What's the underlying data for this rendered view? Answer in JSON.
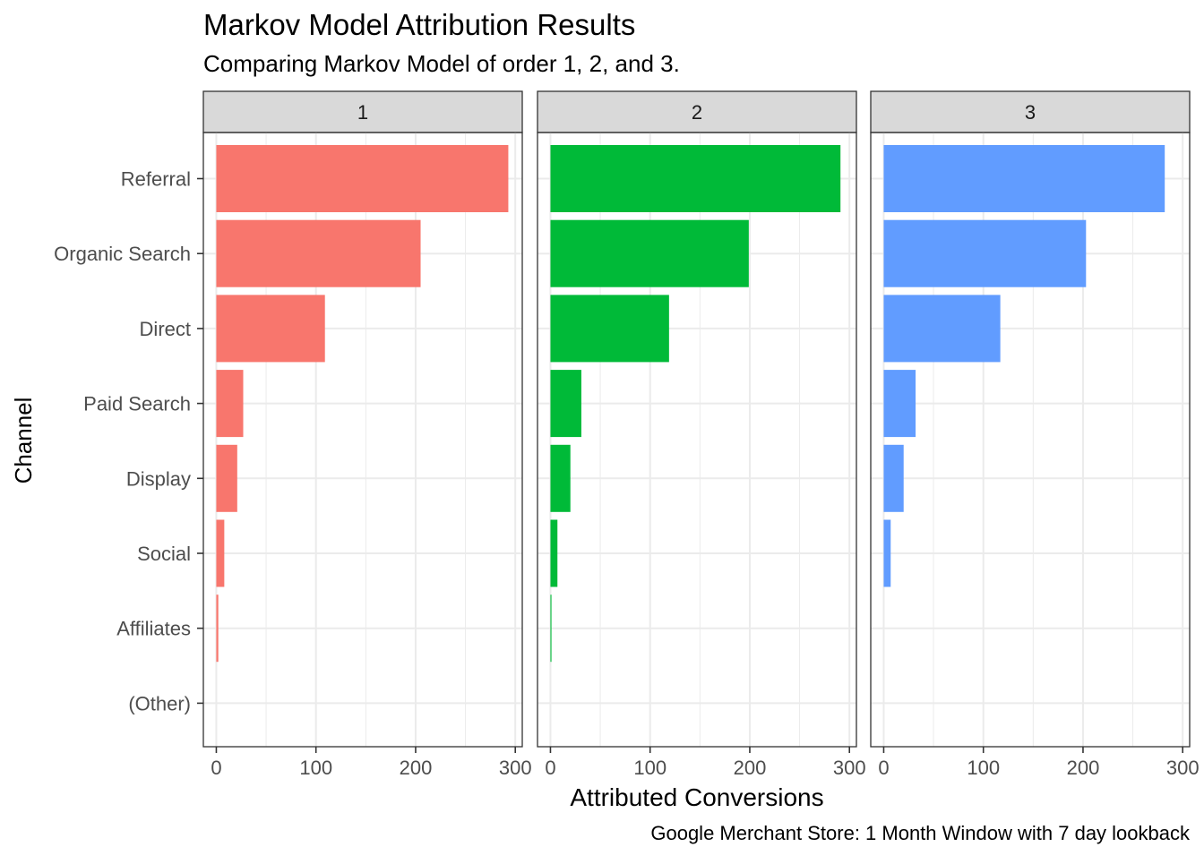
{
  "chart_data": {
    "type": "bar",
    "orientation": "horizontal",
    "title": "Markov Model Attribution Results",
    "subtitle": "Comparing Markov Model of order 1, 2, and 3.",
    "xlabel": "Attributed Conversions",
    "ylabel": "Channel",
    "caption": "Google Merchant Store: 1 Month Window with 7 day lookback",
    "categories": [
      "Referral",
      "Organic Search",
      "Direct",
      "Paid Search",
      "Display",
      "Social",
      "Affiliates",
      "(Other)"
    ],
    "x_ticks": [
      0,
      100,
      200,
      300
    ],
    "xlim": [
      -13,
      307
    ],
    "grid": true,
    "legend": "none",
    "facets": [
      {
        "label": "1",
        "color": "#F8766D",
        "values": [
          293,
          205,
          109,
          27,
          21,
          8,
          2,
          0
        ]
      },
      {
        "label": "2",
        "color": "#00BA38",
        "values": [
          291,
          199,
          119,
          31,
          20,
          7,
          1,
          0
        ]
      },
      {
        "label": "3",
        "color": "#619CFF",
        "values": [
          282,
          203,
          117,
          32,
          20,
          7,
          0,
          0
        ]
      }
    ]
  }
}
